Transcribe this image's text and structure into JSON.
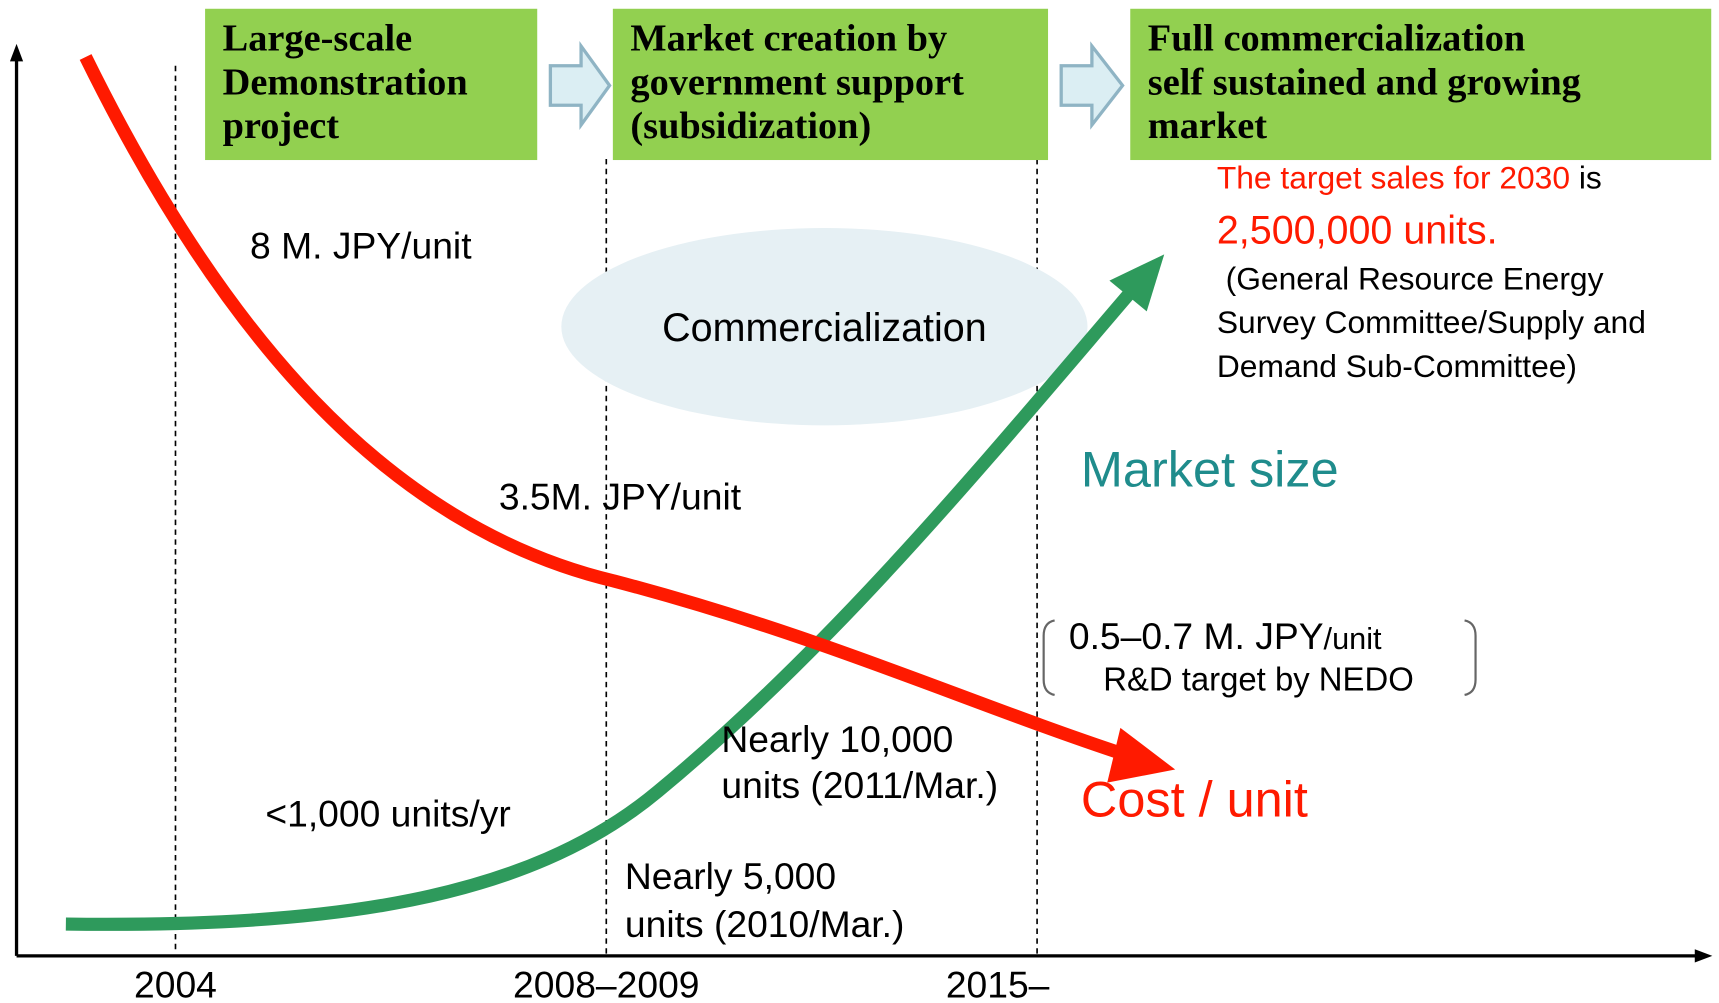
{
  "stages": [
    {
      "lines": [
        "Large-scale",
        "Demonstration",
        "project"
      ]
    },
    {
      "lines": [
        "Market creation by",
        "government support",
        "(subsidization)"
      ]
    },
    {
      "lines": [
        "Full commercialization",
        "self sustained and growing",
        "market"
      ]
    }
  ],
  "x_labels": [
    "2004",
    "2008–2009",
    "2015–"
  ],
  "cost_labels": [
    "8 M. JPY/unit",
    "3.5M. JPY/unit"
  ],
  "nedo": {
    "main": "0.5–0.7 M. JPY",
    "unit": "/unit",
    "sub": "R&D target by NEDO"
  },
  "commercialization": "Commercialization",
  "target": {
    "red": "The target sales for 2030",
    "black": " is",
    "big": "2,500,000 units.",
    "source": [
      "(General Resource Energy",
      "Survey Committee/Supply and",
      "Demand Sub-Committee)"
    ]
  },
  "market_size": "Market size",
  "cost_unit": "Cost / unit",
  "units_labels": {
    "early": "<1,000 units/yr",
    "y2011": [
      "Nearly 10,000",
      "units (2011/Mar.)"
    ],
    "y2010": [
      "Nearly 5,000",
      "units (2010/Mar.)"
    ]
  }
}
